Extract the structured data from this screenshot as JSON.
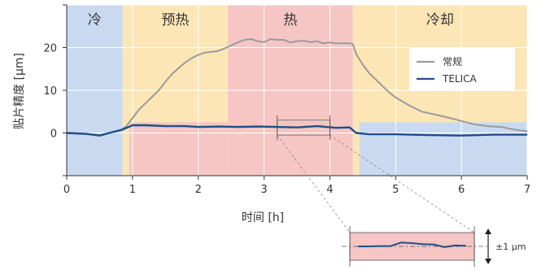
{
  "chart_data": {
    "type": "line",
    "xlabel": "时间 [h]",
    "ylabel": "贴片精度 [µm]",
    "xlim": [
      0,
      7
    ],
    "ylim": [
      -10,
      30
    ],
    "xticks": [
      "0",
      "1",
      "2",
      "3",
      "4",
      "5",
      "6",
      "7"
    ],
    "yticks": [
      "0",
      "10",
      "20"
    ],
    "grid": true,
    "legend_position": "top-right",
    "colors": {
      "cold": "#c9daf0",
      "preheat": "#fce6b6",
      "hot": "#f5c6c4",
      "cool": "#fce6b6",
      "conventional": "#9b9b9b",
      "telica": "#1f4e8c"
    },
    "phases": [
      {
        "label": "冷",
        "start": 0,
        "end": 0.85,
        "color": "#c9daf0"
      },
      {
        "label": "预热",
        "start": 0.85,
        "end": 2.45,
        "color": "#fce6b6"
      },
      {
        "label": "热",
        "start": 2.45,
        "end": 4.35,
        "color": "#f5c6c4"
      },
      {
        "label": "冷却",
        "start": 4.35,
        "end": 7.0,
        "color": "#fce6b6"
      }
    ],
    "inner_bands": [
      {
        "start": 0.95,
        "end": 2.45,
        "color": "#f5c6c4"
      },
      {
        "start": 4.45,
        "end": 7.0,
        "color": "#c9daf0"
      }
    ],
    "series": [
      {
        "name": "常规",
        "color": "#9b9b9b",
        "x": [
          0,
          0.5,
          0.8,
          0.9,
          1.0,
          1.1,
          1.2,
          1.3,
          1.4,
          1.5,
          1.6,
          1.7,
          1.8,
          1.9,
          2.0,
          2.1,
          2.2,
          2.3,
          2.4,
          2.5,
          2.6,
          2.7,
          2.8,
          2.9,
          3.0,
          3.1,
          3.2,
          3.3,
          3.4,
          3.5,
          3.6,
          3.7,
          3.8,
          3.9,
          4.0,
          4.1,
          4.2,
          4.3,
          4.35,
          4.4,
          4.5,
          4.6,
          4.7,
          4.8,
          4.9,
          5.0,
          5.2,
          5.4,
          5.6,
          5.8,
          6.0,
          6.2,
          6.4,
          6.6,
          6.8,
          7.0
        ],
        "y": [
          0,
          -0.5,
          0.5,
          1.5,
          3.5,
          5.5,
          7.0,
          8.5,
          10.0,
          12.0,
          13.8,
          15.2,
          16.5,
          17.5,
          18.3,
          18.8,
          19.0,
          19.2,
          19.8,
          20.5,
          21.2,
          21.8,
          22.0,
          21.5,
          21.3,
          22.0,
          21.8,
          21.8,
          21.2,
          21.5,
          21.6,
          21.3,
          21.5,
          21.0,
          21.2,
          21.0,
          21.0,
          21.0,
          20.8,
          18.5,
          16.0,
          14.0,
          12.5,
          11.0,
          9.5,
          8.3,
          6.5,
          5.0,
          4.3,
          3.6,
          2.8,
          2.0,
          1.6,
          1.4,
          0.8,
          0.4
        ]
      },
      {
        "name": "TELICA",
        "color": "#1f4e8c",
        "x": [
          0,
          0.3,
          0.5,
          0.7,
          0.85,
          1.0,
          1.2,
          1.5,
          1.8,
          2.0,
          2.3,
          2.6,
          2.9,
          3.2,
          3.5,
          3.8,
          4.1,
          4.3,
          4.4,
          4.6,
          5.0,
          5.5,
          6.0,
          6.5,
          7.0
        ],
        "y": [
          0,
          -0.2,
          -0.6,
          0.2,
          0.8,
          1.8,
          1.8,
          1.6,
          1.6,
          1.4,
          1.5,
          1.4,
          1.5,
          1.4,
          1.3,
          1.6,
          1.2,
          1.3,
          0.0,
          -0.3,
          -0.3,
          -0.5,
          -0.6,
          -0.4,
          -0.4
        ]
      }
    ],
    "zoom_region": {
      "x": [
        3.2,
        4.0
      ],
      "y": [
        -0.5,
        3.0
      ]
    },
    "inset": {
      "label": "±1 µm",
      "x": [
        0,
        1,
        2,
        3,
        4,
        5,
        6,
        7,
        8,
        9,
        10
      ],
      "y": [
        0,
        0,
        0.05,
        0.05,
        0.6,
        0.5,
        0.35,
        0.3,
        -0.1,
        0.15,
        0.1
      ]
    }
  }
}
